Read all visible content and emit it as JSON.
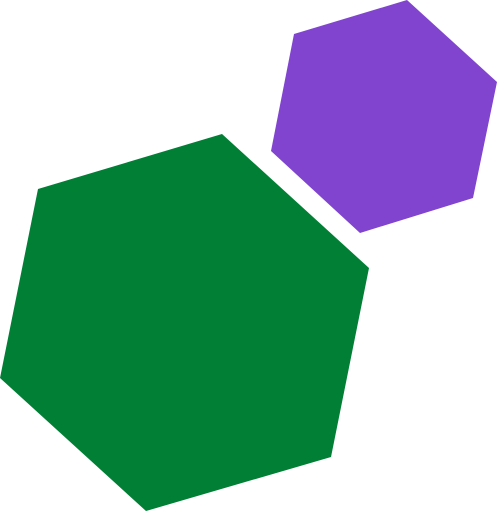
{
  "shapes": {
    "green_hexagon": {
      "type": "hexagon",
      "color": "#007F35"
    },
    "purple_hexagon": {
      "type": "hexagon",
      "color": "#8044CF"
    }
  }
}
